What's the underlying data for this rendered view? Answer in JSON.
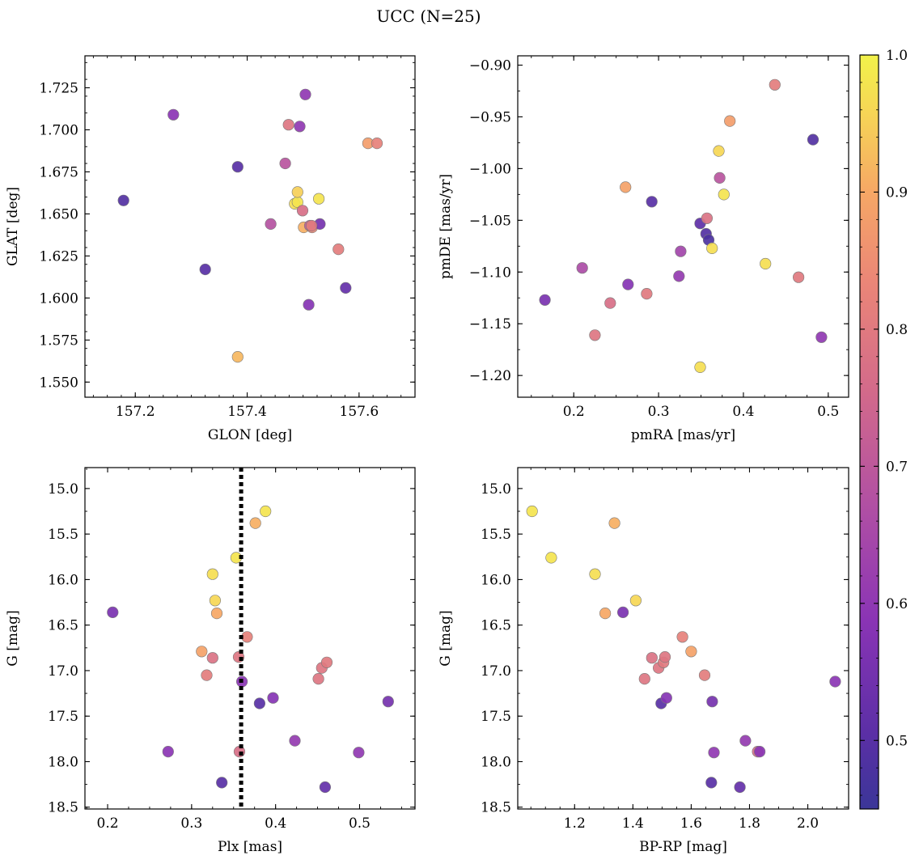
{
  "title": "UCC (N=25)",
  "colorbar": {
    "min": 0.45,
    "max": 1.0,
    "ticks": [
      "0.5",
      "0.6",
      "0.7",
      "0.8",
      "0.9",
      "1.0"
    ],
    "colormap": "plasma"
  },
  "chart_data": [
    {
      "type": "scatter",
      "xlabel": "GLON [deg]",
      "ylabel": "GLAT [deg]",
      "xlim": [
        157.11,
        157.7
      ],
      "ylim": [
        1.541,
        1.744
      ],
      "y_inverted": false,
      "xticks": [
        "157.2",
        "157.4",
        "157.6"
      ],
      "yticks": [
        "1.550",
        "1.575",
        "1.600",
        "1.625",
        "1.650",
        "1.675",
        "1.700",
        "1.725"
      ],
      "points": [
        {
          "x": 157.179,
          "y": 1.658,
          "c": 0.49
        },
        {
          "x": 157.268,
          "y": 1.709,
          "c": 0.59
        },
        {
          "x": 157.325,
          "y": 1.617,
          "c": 0.5
        },
        {
          "x": 157.383,
          "y": 1.678,
          "c": 0.5
        },
        {
          "x": 157.383,
          "y": 1.565,
          "c": 0.92
        },
        {
          "x": 157.442,
          "y": 1.644,
          "c": 0.68
        },
        {
          "x": 157.468,
          "y": 1.68,
          "c": 0.69
        },
        {
          "x": 157.474,
          "y": 1.703,
          "c": 0.79
        },
        {
          "x": 157.485,
          "y": 1.656,
          "c": 0.97
        },
        {
          "x": 157.49,
          "y": 1.657,
          "c": 0.98
        },
        {
          "x": 157.49,
          "y": 1.663,
          "c": 0.95
        },
        {
          "x": 157.494,
          "y": 1.702,
          "c": 0.6
        },
        {
          "x": 157.499,
          "y": 1.652,
          "c": 0.77
        },
        {
          "x": 157.501,
          "y": 1.642,
          "c": 0.91
        },
        {
          "x": 157.504,
          "y": 1.721,
          "c": 0.6
        },
        {
          "x": 157.51,
          "y": 1.596,
          "c": 0.58
        },
        {
          "x": 157.512,
          "y": 1.643,
          "c": 0.71
        },
        {
          "x": 157.516,
          "y": 1.642,
          "c": 0.84
        },
        {
          "x": 157.528,
          "y": 1.659,
          "c": 0.98
        },
        {
          "x": 157.53,
          "y": 1.644,
          "c": 0.55
        },
        {
          "x": 157.563,
          "y": 1.629,
          "c": 0.81
        },
        {
          "x": 157.576,
          "y": 1.606,
          "c": 0.52
        },
        {
          "x": 157.616,
          "y": 1.692,
          "c": 0.88
        },
        {
          "x": 157.632,
          "y": 1.692,
          "c": 0.82
        },
        {
          "x": 157.515,
          "y": 1.643,
          "c": 0.8
        }
      ]
    },
    {
      "type": "scatter",
      "xlabel": "pmRA [mas/yr]",
      "ylabel": "pmDE [mas/yr]",
      "xlim": [
        0.134,
        0.524
      ],
      "ylim": [
        -1.221,
        -0.891
      ],
      "y_inverted": false,
      "xticks": [
        "0.2",
        "0.3",
        "0.4",
        "0.5"
      ],
      "yticks": [
        "−1.20",
        "−1.15",
        "−1.10",
        "−1.05",
        "−1.00",
        "−0.95",
        "−0.90"
      ],
      "points": [
        {
          "x": 0.166,
          "y": -1.127,
          "c": 0.56
        },
        {
          "x": 0.21,
          "y": -1.096,
          "c": 0.66
        },
        {
          "x": 0.225,
          "y": -1.161,
          "c": 0.79
        },
        {
          "x": 0.243,
          "y": -1.13,
          "c": 0.77
        },
        {
          "x": 0.261,
          "y": -1.018,
          "c": 0.89
        },
        {
          "x": 0.264,
          "y": -1.112,
          "c": 0.58
        },
        {
          "x": 0.286,
          "y": -1.121,
          "c": 0.8
        },
        {
          "x": 0.292,
          "y": -1.032,
          "c": 0.5
        },
        {
          "x": 0.324,
          "y": -1.104,
          "c": 0.61
        },
        {
          "x": 0.326,
          "y": -1.08,
          "c": 0.64
        },
        {
          "x": 0.349,
          "y": -1.053,
          "c": 0.51
        },
        {
          "x": 0.349,
          "y": -1.192,
          "c": 0.97
        },
        {
          "x": 0.356,
          "y": -1.063,
          "c": 0.49
        },
        {
          "x": 0.357,
          "y": -1.048,
          "c": 0.78
        },
        {
          "x": 0.359,
          "y": -1.069,
          "c": 0.48
        },
        {
          "x": 0.363,
          "y": -1.077,
          "c": 0.97
        },
        {
          "x": 0.371,
          "y": -0.983,
          "c": 0.96
        },
        {
          "x": 0.372,
          "y": -1.009,
          "c": 0.69
        },
        {
          "x": 0.377,
          "y": -1.025,
          "c": 0.98
        },
        {
          "x": 0.384,
          "y": -0.954,
          "c": 0.88
        },
        {
          "x": 0.426,
          "y": -1.092,
          "c": 0.97
        },
        {
          "x": 0.437,
          "y": -0.919,
          "c": 0.81
        },
        {
          "x": 0.465,
          "y": -1.105,
          "c": 0.8
        },
        {
          "x": 0.482,
          "y": -0.972,
          "c": 0.49
        },
        {
          "x": 0.492,
          "y": -1.163,
          "c": 0.6
        }
      ]
    },
    {
      "type": "scatter",
      "xlabel": "Plx [mas]",
      "ylabel": "G [mag]",
      "xlim": [
        0.173,
        0.566
      ],
      "ylim": [
        14.77,
        18.52
      ],
      "y_inverted": true,
      "vline": 0.359,
      "xticks": [
        "0.2",
        "0.3",
        "0.4",
        "0.5"
      ],
      "yticks": [
        "15.0",
        "15.5",
        "16.0",
        "16.5",
        "17.0",
        "17.5",
        "18.0",
        "18.5"
      ],
      "points": [
        {
          "x": 0.206,
          "y": 16.36,
          "c": 0.56
        },
        {
          "x": 0.272,
          "y": 17.89,
          "c": 0.59
        },
        {
          "x": 0.312,
          "y": 16.79,
          "c": 0.89
        },
        {
          "x": 0.318,
          "y": 17.05,
          "c": 0.81
        },
        {
          "x": 0.325,
          "y": 16.86,
          "c": 0.78
        },
        {
          "x": 0.325,
          "y": 15.94,
          "c": 0.97
        },
        {
          "x": 0.328,
          "y": 16.23,
          "c": 0.96
        },
        {
          "x": 0.33,
          "y": 16.37,
          "c": 0.9
        },
        {
          "x": 0.336,
          "y": 18.23,
          "c": 0.5
        },
        {
          "x": 0.353,
          "y": 15.76,
          "c": 0.98
        },
        {
          "x": 0.356,
          "y": 16.85,
          "c": 0.79
        },
        {
          "x": 0.357,
          "y": 17.89,
          "c": 0.77
        },
        {
          "x": 0.36,
          "y": 17.12,
          "c": 0.59
        },
        {
          "x": 0.366,
          "y": 16.63,
          "c": 0.82
        },
        {
          "x": 0.376,
          "y": 15.38,
          "c": 0.91
        },
        {
          "x": 0.381,
          "y": 17.36,
          "c": 0.5
        },
        {
          "x": 0.388,
          "y": 15.25,
          "c": 0.98
        },
        {
          "x": 0.397,
          "y": 17.3,
          "c": 0.58
        },
        {
          "x": 0.423,
          "y": 17.77,
          "c": 0.61
        },
        {
          "x": 0.451,
          "y": 17.09,
          "c": 0.79
        },
        {
          "x": 0.455,
          "y": 16.97,
          "c": 0.79
        },
        {
          "x": 0.459,
          "y": 18.28,
          "c": 0.52
        },
        {
          "x": 0.461,
          "y": 16.91,
          "c": 0.8
        },
        {
          "x": 0.499,
          "y": 17.9,
          "c": 0.6
        },
        {
          "x": 0.534,
          "y": 17.34,
          "c": 0.55
        }
      ]
    },
    {
      "type": "scatter",
      "xlabel": "BP-RP [mag]",
      "ylabel": "G [mag]",
      "xlim": [
        1.005,
        2.14
      ],
      "ylim": [
        14.77,
        18.52
      ],
      "y_inverted": true,
      "xticks": [
        "1.2",
        "1.4",
        "1.6",
        "1.8",
        "2.0"
      ],
      "yticks": [
        "15.0",
        "15.5",
        "16.0",
        "16.5",
        "17.0",
        "17.5",
        "18.0",
        "18.5"
      ],
      "points": [
        {
          "x": 1.054,
          "y": 15.25,
          "c": 0.98
        },
        {
          "x": 1.12,
          "y": 15.76,
          "c": 0.98
        },
        {
          "x": 1.27,
          "y": 15.94,
          "c": 0.97
        },
        {
          "x": 1.305,
          "y": 16.37,
          "c": 0.9
        },
        {
          "x": 1.337,
          "y": 15.38,
          "c": 0.91
        },
        {
          "x": 1.366,
          "y": 16.36,
          "c": 0.56
        },
        {
          "x": 1.41,
          "y": 16.23,
          "c": 0.96
        },
        {
          "x": 1.44,
          "y": 17.09,
          "c": 0.79
        },
        {
          "x": 1.465,
          "y": 16.86,
          "c": 0.78
        },
        {
          "x": 1.488,
          "y": 16.97,
          "c": 0.79
        },
        {
          "x": 1.497,
          "y": 17.36,
          "c": 0.5
        },
        {
          "x": 1.505,
          "y": 16.91,
          "c": 0.8
        },
        {
          "x": 1.51,
          "y": 16.85,
          "c": 0.79
        },
        {
          "x": 1.515,
          "y": 17.3,
          "c": 0.58
        },
        {
          "x": 1.57,
          "y": 16.63,
          "c": 0.82
        },
        {
          "x": 1.6,
          "y": 16.79,
          "c": 0.89
        },
        {
          "x": 1.646,
          "y": 17.05,
          "c": 0.81
        },
        {
          "x": 1.669,
          "y": 18.23,
          "c": 0.5
        },
        {
          "x": 1.672,
          "y": 17.34,
          "c": 0.55
        },
        {
          "x": 1.678,
          "y": 17.9,
          "c": 0.6
        },
        {
          "x": 1.767,
          "y": 18.28,
          "c": 0.52
        },
        {
          "x": 1.786,
          "y": 17.77,
          "c": 0.61
        },
        {
          "x": 1.828,
          "y": 17.89,
          "c": 0.77
        },
        {
          "x": 1.835,
          "y": 17.89,
          "c": 0.59
        },
        {
          "x": 2.094,
          "y": 17.12,
          "c": 0.59
        }
      ]
    }
  ]
}
